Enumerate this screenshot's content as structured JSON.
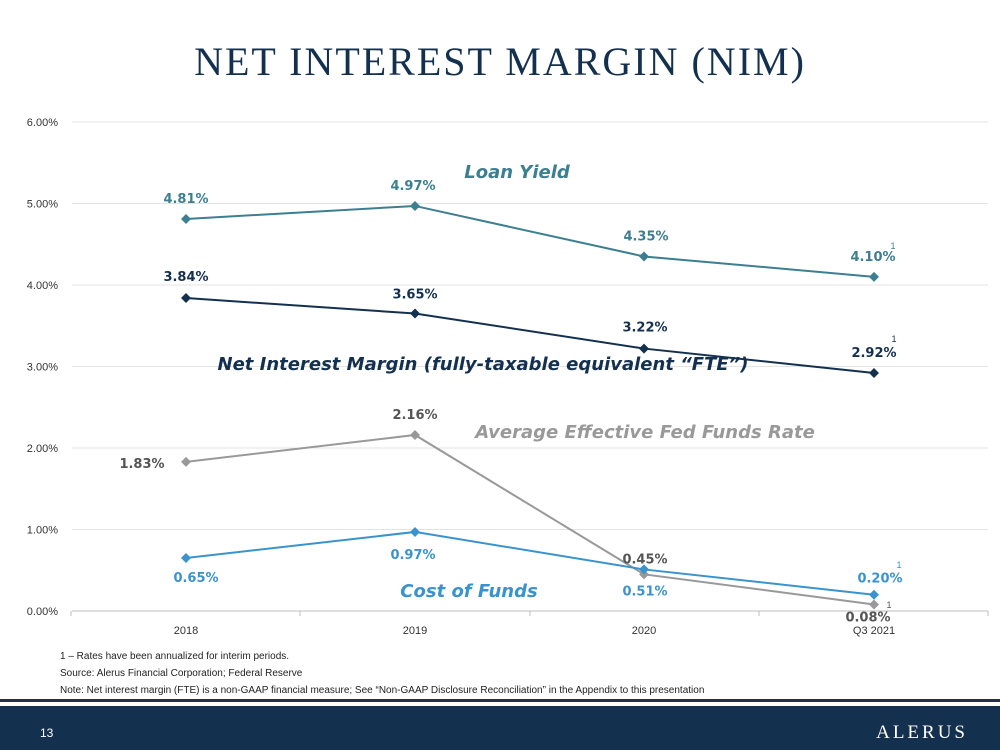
{
  "slide": {
    "title": "NET INTEREST MARGIN (NIM)",
    "notes": [
      "1 – Rates have been annualized for interim periods.",
      "Source: Alerus Financial Corporation; Federal Reserve",
      "Note: Net interest margin (FTE) is a non-GAAP financial measure; See “Non-GAAP Disclosure Reconciliation” in the Appendix to this presentation"
    ],
    "page_number": "13",
    "logo_text": "ALERUS",
    "footnote_marker": "1"
  },
  "chart_data": {
    "type": "line",
    "categories": [
      "2018",
      "2019",
      "2020",
      "Q3 2021"
    ],
    "ylim": [
      0,
      6
    ],
    "yticks": [
      "0.00%",
      "1.00%",
      "2.00%",
      "3.00%",
      "4.00%",
      "5.00%",
      "6.00%"
    ],
    "grid": true,
    "series": [
      {
        "name": "Loan Yield",
        "values": [
          4.81,
          4.97,
          4.35,
          4.1
        ],
        "labels": [
          "4.81%",
          "4.97%",
          "4.35%",
          "4.10%"
        ],
        "color": "#3b7f91"
      },
      {
        "name": "Net Interest Margin (fully-taxable equivalent “FTE”)",
        "values": [
          3.84,
          3.65,
          3.22,
          2.92
        ],
        "labels": [
          "3.84%",
          "3.65%",
          "3.22%",
          "2.92%"
        ],
        "color": "#14304f"
      },
      {
        "name": "Average Effective Fed Funds Rate",
        "values": [
          1.83,
          2.16,
          0.45,
          0.08
        ],
        "labels": [
          "1.83%",
          "2.16%",
          "0.45%",
          "0.08%"
        ],
        "color": "#999999"
      },
      {
        "name": "Cost of Funds",
        "values": [
          0.65,
          0.97,
          0.51,
          0.2
        ],
        "labels": [
          "0.65%",
          "0.97%",
          "0.51%",
          "0.20%"
        ],
        "color": "#3a93cc"
      }
    ]
  }
}
